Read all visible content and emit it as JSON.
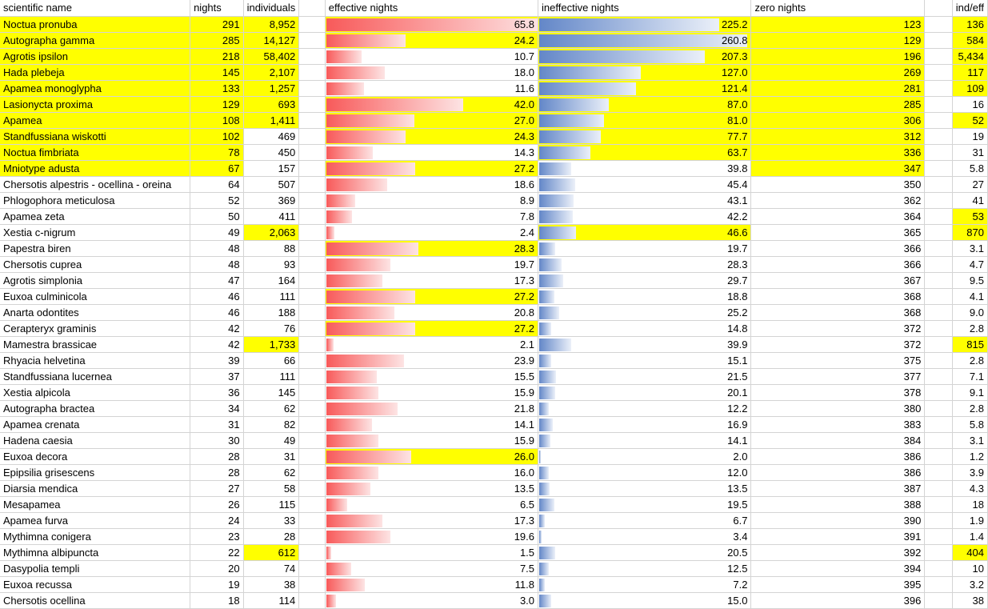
{
  "headers": {
    "name": "scientific name",
    "nights": "nights",
    "individuals": "individuals",
    "effective": "effective nights",
    "ineffective": "ineffective nights",
    "zero": "zero nights",
    "ratio": "ind/eff"
  },
  "scales": {
    "effective_max": 65.8,
    "ineffective_max": 260.8
  },
  "colors": {
    "highlight": "#ffff00",
    "red_bar": "#f85a5a",
    "blue_bar": "#6387c8",
    "grid": "#d4d4d4"
  },
  "rows": [
    {
      "name": "Noctua pronuba",
      "nights": "291",
      "individuals": "8,952",
      "eff": "65.8",
      "ineff": "225.2",
      "zero": "123",
      "ratio": "136",
      "hl": [
        "name",
        "nights",
        "individuals",
        "eff",
        "ineff",
        "zero",
        "ratio"
      ]
    },
    {
      "name": "Autographa gamma",
      "nights": "285",
      "individuals": "14,127",
      "eff": "24.2",
      "ineff": "260.8",
      "zero": "129",
      "ratio": "584",
      "hl": [
        "name",
        "nights",
        "individuals",
        "eff",
        "ineff",
        "zero",
        "ratio"
      ]
    },
    {
      "name": "Agrotis ipsilon",
      "nights": "218",
      "individuals": "58,402",
      "eff": "10.7",
      "ineff": "207.3",
      "zero": "196",
      "ratio": "5,434",
      "hl": [
        "name",
        "nights",
        "individuals",
        "ineff",
        "zero",
        "ratio"
      ]
    },
    {
      "name": "Hada plebeja",
      "nights": "145",
      "individuals": "2,107",
      "eff": "18.0",
      "ineff": "127.0",
      "zero": "269",
      "ratio": "117",
      "hl": [
        "name",
        "nights",
        "individuals",
        "ineff",
        "zero",
        "ratio"
      ]
    },
    {
      "name": "Apamea monoglypha",
      "nights": "133",
      "individuals": "1,257",
      "eff": "11.6",
      "ineff": "121.4",
      "zero": "281",
      "ratio": "109",
      "hl": [
        "name",
        "nights",
        "individuals",
        "ineff",
        "zero",
        "ratio"
      ]
    },
    {
      "name": "Lasionycta proxima",
      "nights": "129",
      "individuals": "693",
      "eff": "42.0",
      "ineff": "87.0",
      "zero": "285",
      "ratio": "16",
      "hl": [
        "name",
        "nights",
        "individuals",
        "eff",
        "ineff",
        "zero"
      ]
    },
    {
      "name": "Apamea",
      "nights": "108",
      "individuals": "1,411",
      "eff": "27.0",
      "ineff": "81.0",
      "zero": "306",
      "ratio": "52",
      "hl": [
        "name",
        "nights",
        "individuals",
        "eff",
        "ineff",
        "zero",
        "ratio"
      ]
    },
    {
      "name": "Standfussiana wiskotti",
      "nights": "102",
      "individuals": "469",
      "eff": "24.3",
      "ineff": "77.7",
      "zero": "312",
      "ratio": "19",
      "hl": [
        "name",
        "nights",
        "eff",
        "ineff",
        "zero"
      ]
    },
    {
      "name": "Noctua fimbriata",
      "nights": "78",
      "individuals": "450",
      "eff": "14.3",
      "ineff": "63.7",
      "zero": "336",
      "ratio": "31",
      "hl": [
        "name",
        "nights",
        "ineff",
        "zero"
      ]
    },
    {
      "name": "Mniotype adusta",
      "nights": "67",
      "individuals": "157",
      "eff": "27.2",
      "ineff": "39.8",
      "zero": "347",
      "ratio": "5.8",
      "hl": [
        "name",
        "nights",
        "eff",
        "zero"
      ]
    },
    {
      "name": "Chersotis alpestris - ocellina - oreina",
      "nights": "64",
      "individuals": "507",
      "eff": "18.6",
      "ineff": "45.4",
      "zero": "350",
      "ratio": "27",
      "hl": []
    },
    {
      "name": "Phlogophora meticulosa",
      "nights": "52",
      "individuals": "369",
      "eff": "8.9",
      "ineff": "43.1",
      "zero": "362",
      "ratio": "41",
      "hl": []
    },
    {
      "name": "Apamea zeta",
      "nights": "50",
      "individuals": "411",
      "eff": "7.8",
      "ineff": "42.2",
      "zero": "364",
      "ratio": "53",
      "hl": [
        "ratio"
      ]
    },
    {
      "name": "Xestia c-nigrum",
      "nights": "49",
      "individuals": "2,063",
      "eff": "2.4",
      "ineff": "46.6",
      "zero": "365",
      "ratio": "870",
      "hl": [
        "individuals",
        "ineff",
        "ratio"
      ]
    },
    {
      "name": "Papestra biren",
      "nights": "48",
      "individuals": "88",
      "eff": "28.3",
      "ineff": "19.7",
      "zero": "366",
      "ratio": "3.1",
      "hl": [
        "eff"
      ]
    },
    {
      "name": "Chersotis cuprea",
      "nights": "48",
      "individuals": "93",
      "eff": "19.7",
      "ineff": "28.3",
      "zero": "366",
      "ratio": "4.7",
      "hl": []
    },
    {
      "name": "Agrotis simplonia",
      "nights": "47",
      "individuals": "164",
      "eff": "17.3",
      "ineff": "29.7",
      "zero": "367",
      "ratio": "9.5",
      "hl": []
    },
    {
      "name": "Euxoa culminicola",
      "nights": "46",
      "individuals": "111",
      "eff": "27.2",
      "ineff": "18.8",
      "zero": "368",
      "ratio": "4.1",
      "hl": [
        "eff"
      ]
    },
    {
      "name": "Anarta odontites",
      "nights": "46",
      "individuals": "188",
      "eff": "20.8",
      "ineff": "25.2",
      "zero": "368",
      "ratio": "9.0",
      "hl": []
    },
    {
      "name": "Cerapteryx graminis",
      "nights": "42",
      "individuals": "76",
      "eff": "27.2",
      "ineff": "14.8",
      "zero": "372",
      "ratio": "2.8",
      "hl": [
        "eff"
      ]
    },
    {
      "name": "Mamestra brassicae",
      "nights": "42",
      "individuals": "1,733",
      "eff": "2.1",
      "ineff": "39.9",
      "zero": "372",
      "ratio": "815",
      "hl": [
        "individuals",
        "ratio"
      ]
    },
    {
      "name": "Rhyacia helvetina",
      "nights": "39",
      "individuals": "66",
      "eff": "23.9",
      "ineff": "15.1",
      "zero": "375",
      "ratio": "2.8",
      "hl": []
    },
    {
      "name": "Standfussiana lucernea",
      "nights": "37",
      "individuals": "111",
      "eff": "15.5",
      "ineff": "21.5",
      "zero": "377",
      "ratio": "7.1",
      "hl": []
    },
    {
      "name": "Xestia alpicola",
      "nights": "36",
      "individuals": "145",
      "eff": "15.9",
      "ineff": "20.1",
      "zero": "378",
      "ratio": "9.1",
      "hl": []
    },
    {
      "name": "Autographa bractea",
      "nights": "34",
      "individuals": "62",
      "eff": "21.8",
      "ineff": "12.2",
      "zero": "380",
      "ratio": "2.8",
      "hl": []
    },
    {
      "name": "Apamea crenata",
      "nights": "31",
      "individuals": "82",
      "eff": "14.1",
      "ineff": "16.9",
      "zero": "383",
      "ratio": "5.8",
      "hl": []
    },
    {
      "name": "Hadena caesia",
      "nights": "30",
      "individuals": "49",
      "eff": "15.9",
      "ineff": "14.1",
      "zero": "384",
      "ratio": "3.1",
      "hl": []
    },
    {
      "name": "Euxoa decora",
      "nights": "28",
      "individuals": "31",
      "eff": "26.0",
      "ineff": "2.0",
      "zero": "386",
      "ratio": "1.2",
      "hl": [
        "eff"
      ]
    },
    {
      "name": "Epipsilia grisescens",
      "nights": "28",
      "individuals": "62",
      "eff": "16.0",
      "ineff": "12.0",
      "zero": "386",
      "ratio": "3.9",
      "hl": []
    },
    {
      "name": "Diarsia mendica",
      "nights": "27",
      "individuals": "58",
      "eff": "13.5",
      "ineff": "13.5",
      "zero": "387",
      "ratio": "4.3",
      "hl": []
    },
    {
      "name": "Mesapamea",
      "nights": "26",
      "individuals": "115",
      "eff": "6.5",
      "ineff": "19.5",
      "zero": "388",
      "ratio": "18",
      "hl": []
    },
    {
      "name": "Apamea furva",
      "nights": "24",
      "individuals": "33",
      "eff": "17.3",
      "ineff": "6.7",
      "zero": "390",
      "ratio": "1.9",
      "hl": []
    },
    {
      "name": "Mythimna conigera",
      "nights": "23",
      "individuals": "28",
      "eff": "19.6",
      "ineff": "3.4",
      "zero": "391",
      "ratio": "1.4",
      "hl": []
    },
    {
      "name": "Mythimna albipuncta",
      "nights": "22",
      "individuals": "612",
      "eff": "1.5",
      "ineff": "20.5",
      "zero": "392",
      "ratio": "404",
      "hl": [
        "individuals",
        "ratio"
      ]
    },
    {
      "name": "Dasypolia templi",
      "nights": "20",
      "individuals": "74",
      "eff": "7.5",
      "ineff": "12.5",
      "zero": "394",
      "ratio": "10",
      "hl": []
    },
    {
      "name": "Euxoa recussa",
      "nights": "19",
      "individuals": "38",
      "eff": "11.8",
      "ineff": "7.2",
      "zero": "395",
      "ratio": "3.2",
      "hl": []
    },
    {
      "name": "Chersotis ocellina",
      "nights": "18",
      "individuals": "114",
      "eff": "3.0",
      "ineff": "15.0",
      "zero": "396",
      "ratio": "38",
      "hl": []
    }
  ]
}
